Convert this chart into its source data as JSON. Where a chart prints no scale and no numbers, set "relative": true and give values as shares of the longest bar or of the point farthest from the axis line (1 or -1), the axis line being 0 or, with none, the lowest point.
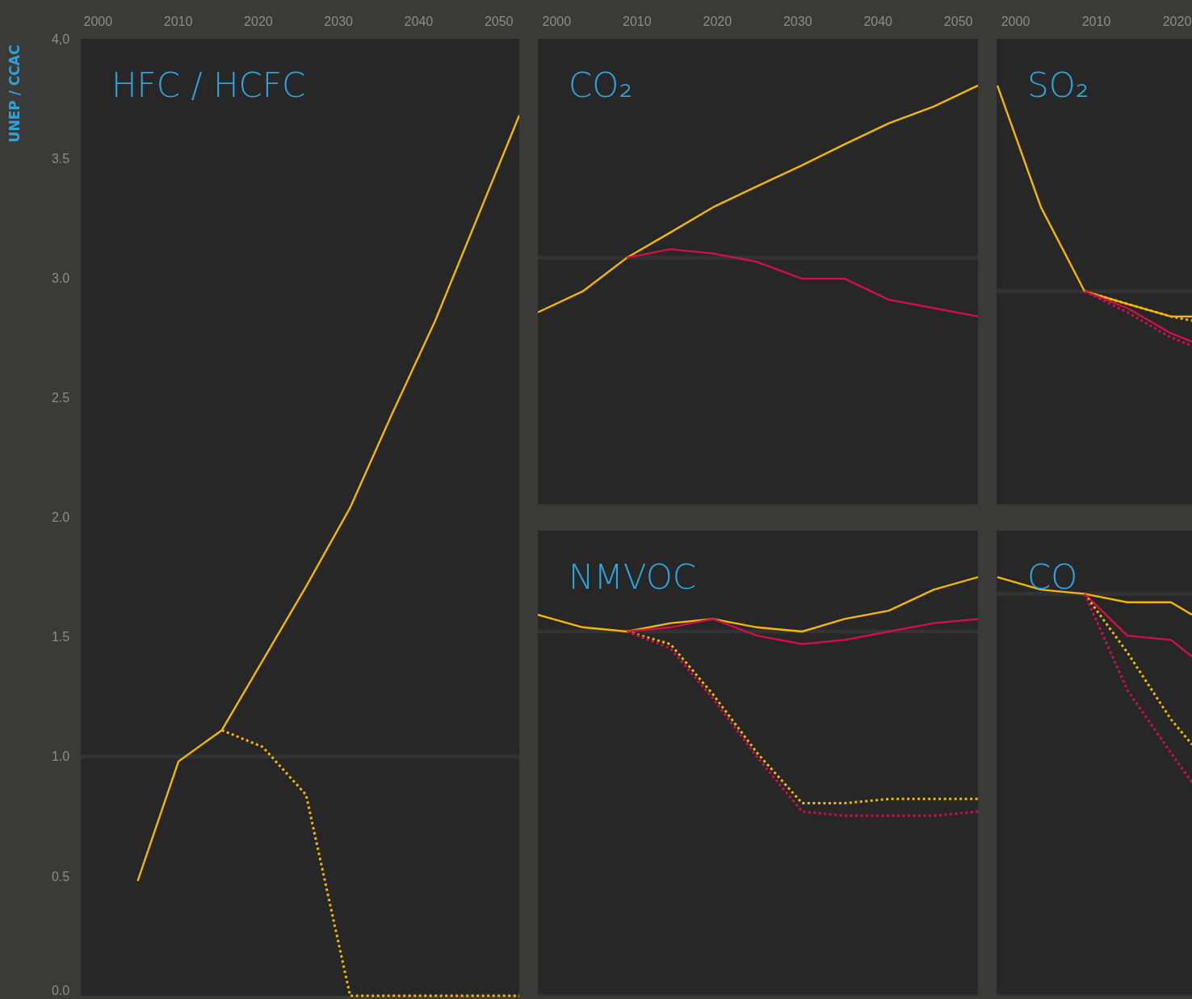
{
  "chart_data": [
    {
      "type": "line",
      "title": "HFC / HCFC",
      "annotations": [
        "UNEP / CCAC"
      ],
      "xlim": [
        1997.9,
        2052.6
      ],
      "xticks": [
        2000,
        2010,
        2020,
        2030,
        2040,
        2050
      ],
      "ylim": [
        0,
        4
      ],
      "yticks": [
        {
          "value": 0,
          "label": "0.0"
        },
        0.5,
        {
          "value": 1,
          "label": "1.0"
        },
        1.5,
        {
          "value": 2,
          "label": "2.0"
        },
        2.5,
        {
          "value": 3,
          "label": "3.0"
        },
        3.5,
        {
          "value": 4,
          "label": "4,0"
        }
      ],
      "ref_lines": [
        {
          "axis": "y",
          "value": 1,
          "color": "#333333"
        }
      ],
      "series": [
        {
          "color": "#f5b800",
          "line_style": "solid",
          "x": [
            2005,
            2010.1,
            2015.5,
            2026,
            2031.5,
            2036.7,
            2042.1,
            2052.6
          ],
          "values": [
            0.48,
            0.98,
            1.11,
            1.71,
            2.04,
            2.43,
            2.82,
            3.68
          ]
        },
        {
          "color": "#f5b800",
          "line_style": "dotted",
          "x": [
            2015.5,
            2020.6,
            2026,
            2031.5,
            2052.6
          ],
          "values": [
            1.11,
            1.04,
            0.84,
            0,
            0
          ]
        }
      ]
    },
    {
      "type": "line",
      "title": "CO₂",
      "relative": true,
      "xlim": [
        1997.7,
        2052.5
      ],
      "xticks": [
        2000,
        2010,
        2020,
        2030,
        2040,
        2050
      ],
      "tick_labels": "x",
      "ref_lines": [
        {
          "axis": "y",
          "value": 0.59,
          "color": "#333333"
        }
      ],
      "series": [
        {
          "color": "#f5b800",
          "line_style": "solid",
          "x": [
            1997.7,
            2003.3,
            2008.8,
            2014.2,
            2019.5,
            2025,
            2030.6,
            2035.9,
            2041.4,
            2047,
            2052.5
          ],
          "values": [
            0.46,
            0.51,
            0.59,
            0.65,
            0.71,
            0.76,
            0.81,
            0.86,
            0.91,
            0.95,
            1
          ]
        },
        {
          "color": "#d0104c",
          "line_style": "solid",
          "x": [
            2008.8,
            2014.2,
            2019.5,
            2025,
            2030.6,
            2035.9,
            2041.4,
            2047,
            2052.5
          ],
          "values": [
            0.59,
            0.61,
            0.6,
            0.58,
            0.54,
            0.54,
            0.49,
            0.47,
            0.45
          ]
        }
      ]
    },
    {
      "type": "line",
      "title": "SO₂",
      "relative": true,
      "xlim": [
        1997.7,
        2021.9
      ],
      "xticks": [
        2000,
        2010,
        2020
      ],
      "tick_labels": "x",
      "ref_lines": [
        {
          "axis": "y",
          "value": 0.51,
          "color": "#333333"
        }
      ],
      "series": [
        {
          "color": "#f5b800",
          "line_style": "solid",
          "x": [
            1997.8,
            2003.2,
            2008.6,
            2013.9,
            2019.3,
            2021.9
          ],
          "values": [
            1,
            0.71,
            0.51,
            0.48,
            0.45,
            0.45
          ]
        },
        {
          "color": "#f5b800",
          "line_style": "dotted",
          "x": [
            2008.6,
            2013.9,
            2019.3,
            2021.9
          ],
          "values": [
            0.51,
            0.48,
            0.45,
            0.44
          ]
        },
        {
          "color": "#d0104c",
          "line_style": "solid",
          "x": [
            2008.6,
            2013.9,
            2019.3,
            2021.9
          ],
          "values": [
            0.51,
            0.47,
            0.41,
            0.39
          ]
        },
        {
          "color": "#d0104c",
          "line_style": "dotted",
          "x": [
            2008.6,
            2013.9,
            2019.3,
            2021.9
          ],
          "values": [
            0.51,
            0.46,
            0.4,
            0.38
          ]
        }
      ]
    },
    {
      "type": "line",
      "title": "NMVOC",
      "relative": true,
      "xlim": [
        1997.7,
        2052.5
      ],
      "tick_labels": false,
      "ref_lines": [
        {
          "axis": "y",
          "value": 0.87,
          "color": "#333333"
        }
      ],
      "series": [
        {
          "color": "#f5b800",
          "line_style": "solid",
          "x": [
            1997.7,
            2003.3,
            2008.8,
            2014.2,
            2019.5,
            2025,
            2030.6,
            2035.9,
            2041.4,
            2047,
            2052.5
          ],
          "values": [
            0.91,
            0.88,
            0.87,
            0.89,
            0.9,
            0.88,
            0.87,
            0.9,
            0.92,
            0.97,
            1
          ]
        },
        {
          "color": "#d0104c",
          "line_style": "solid",
          "x": [
            2008.8,
            2014.2,
            2019.5,
            2025,
            2030.6,
            2035.9,
            2041.4,
            2047,
            2052.5
          ],
          "values": [
            0.87,
            0.88,
            0.9,
            0.86,
            0.84,
            0.85,
            0.87,
            0.89,
            0.9
          ]
        },
        {
          "color": "#f5b800",
          "line_style": "dotted",
          "x": [
            2008.8,
            2014.2,
            2019.5,
            2025,
            2030.6,
            2035.9,
            2041.4,
            2047,
            2052.5
          ],
          "values": [
            0.87,
            0.84,
            0.72,
            0.58,
            0.46,
            0.46,
            0.47,
            0.47,
            0.47
          ]
        },
        {
          "color": "#d0104c",
          "line_style": "dotted",
          "x": [
            2008.8,
            2014.2,
            2019.5,
            2025,
            2030.6,
            2035.9,
            2041.4,
            2047,
            2052.5
          ],
          "values": [
            0.87,
            0.83,
            0.71,
            0.57,
            0.44,
            0.43,
            0.43,
            0.43,
            0.44
          ]
        }
      ]
    },
    {
      "type": "line",
      "title": "CO",
      "relative": true,
      "xlim": [
        1997.7,
        2021.9
      ],
      "tick_labels": false,
      "ref_lines": [
        {
          "axis": "y",
          "value": 0.96,
          "color": "#333333"
        }
      ],
      "series": [
        {
          "color": "#f5b800",
          "line_style": "solid",
          "x": [
            1997.8,
            2003.2,
            2008.6,
            2013.9,
            2019.3,
            2021.9
          ],
          "values": [
            1,
            0.97,
            0.96,
            0.94,
            0.94,
            0.91
          ]
        },
        {
          "color": "#d0104c",
          "line_style": "solid",
          "x": [
            2008.6,
            2013.9,
            2019.3,
            2021.9
          ],
          "values": [
            0.96,
            0.86,
            0.85,
            0.81
          ]
        },
        {
          "color": "#f5b800",
          "line_style": "dotted",
          "x": [
            2008.6,
            2013.9,
            2019.3,
            2021.9
          ],
          "values": [
            0.96,
            0.82,
            0.66,
            0.6
          ]
        },
        {
          "color": "#d0104c",
          "line_style": "dotted",
          "x": [
            2008.6,
            2013.9,
            2019.3,
            2021.9
          ],
          "values": [
            0.96,
            0.73,
            0.58,
            0.51
          ]
        }
      ]
    }
  ]
}
